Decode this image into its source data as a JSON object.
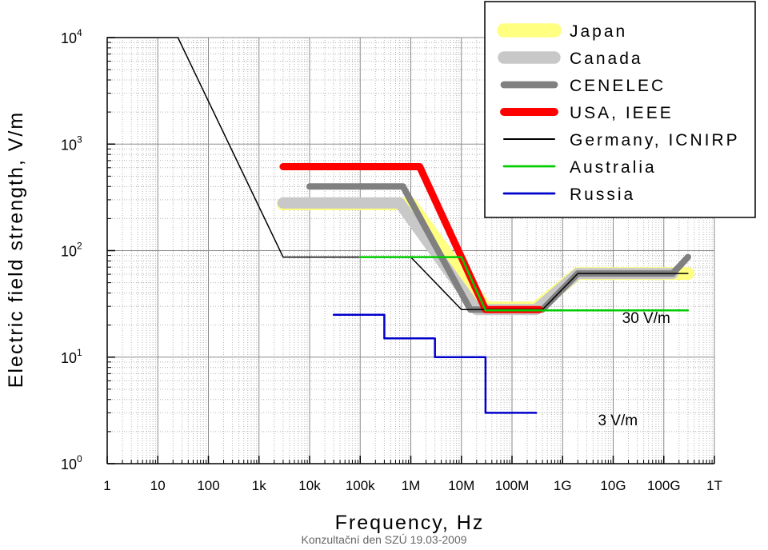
{
  "chart_data": {
    "type": "line",
    "xlabel": "Frequency, Hz",
    "ylabel": "Electric field strength, V/m",
    "x_scale": "log",
    "y_scale": "log",
    "xlim": [
      1,
      1000000000000.0
    ],
    "ylim": [
      1,
      10000
    ],
    "grid": true,
    "legend_position": "top-right",
    "x_ticks": [
      {
        "value": 1,
        "label": "1"
      },
      {
        "value": 10,
        "label": "10"
      },
      {
        "value": 100,
        "label": "100"
      },
      {
        "value": 1000,
        "label": "1k"
      },
      {
        "value": 10000,
        "label": "10k"
      },
      {
        "value": 100000,
        "label": "100k"
      },
      {
        "value": 1000000,
        "label": "1M"
      },
      {
        "value": 10000000,
        "label": "10M"
      },
      {
        "value": 100000000,
        "label": "100M"
      },
      {
        "value": 1000000000,
        "label": "1G"
      },
      {
        "value": 10000000000,
        "label": "10G"
      },
      {
        "value": 100000000000,
        "label": "100G"
      },
      {
        "value": 1000000000000,
        "label": "1T"
      }
    ],
    "y_ticks": [
      {
        "value": 1,
        "base": "10",
        "exp": "0"
      },
      {
        "value": 10,
        "base": "10",
        "exp": "1"
      },
      {
        "value": 100,
        "base": "10",
        "exp": "2"
      },
      {
        "value": 1000,
        "base": "10",
        "exp": "3"
      },
      {
        "value": 10000,
        "base": "10",
        "exp": "4"
      }
    ],
    "series": [
      {
        "name": "Japan",
        "color": "#ffff80",
        "width": 16,
        "points": [
          [
            3000,
            275
          ],
          [
            1000000,
            275
          ],
          [
            30000000,
            29
          ],
          [
            300000000,
            29
          ],
          [
            2000000000,
            61
          ],
          [
            300000000000,
            61
          ]
        ]
      },
      {
        "name": "Canada",
        "color": "#c8c8c8",
        "width": 14,
        "points": [
          [
            3000,
            280
          ],
          [
            600000,
            280
          ],
          [
            20000000,
            28
          ],
          [
            300000000,
            28
          ],
          [
            2000000000,
            61
          ],
          [
            150000000000,
            61
          ]
        ]
      },
      {
        "name": "CENELEC",
        "color": "#808080",
        "width": 8,
        "points": [
          [
            10000,
            400
          ],
          [
            700000,
            400
          ],
          [
            15000000,
            28
          ],
          [
            400000000,
            28
          ],
          [
            2000000000,
            61
          ],
          [
            150000000000,
            61
          ],
          [
            300000000000,
            87
          ]
        ]
      },
      {
        "name": "USA, IEEE",
        "color": "#ff0000",
        "width": 9,
        "points": [
          [
            3000,
            614
          ],
          [
            1500000,
            614
          ],
          [
            30000000,
            28
          ],
          [
            350000000,
            28
          ]
        ]
      },
      {
        "name": "Germany, ICNIRP",
        "color": "#000000",
        "width": 1.5,
        "points": [
          [
            1,
            10000
          ],
          [
            25,
            10000
          ],
          [
            3000,
            87
          ],
          [
            1000000,
            87
          ],
          [
            10000000,
            28
          ],
          [
            400000000,
            28
          ],
          [
            2000000000,
            61
          ],
          [
            300000000000,
            61
          ]
        ]
      },
      {
        "name": "Australia",
        "color": "#00cc00",
        "width": 2.5,
        "points": [
          [
            100000,
            87
          ],
          [
            10000000,
            87
          ],
          [
            30000000,
            27.5
          ],
          [
            300000000000,
            27.5
          ]
        ]
      },
      {
        "name": "Russia",
        "color": "#0000cc",
        "width": 2.5,
        "points": [
          [
            30000,
            25
          ],
          [
            300000,
            25
          ],
          [
            300000,
            15
          ],
          [
            3000000,
            15
          ],
          [
            3000000,
            10
          ],
          [
            30000000,
            10
          ],
          [
            30000000,
            3
          ],
          [
            300000000,
            3
          ]
        ]
      }
    ],
    "annotations": [
      {
        "text": "30 V/m",
        "x": 15000000000,
        "y": 21
      },
      {
        "text": "3 V/m",
        "x": 5000000000,
        "y": 2.3
      }
    ]
  },
  "footer": "Konzultační den SZÚ 19.03-2009"
}
